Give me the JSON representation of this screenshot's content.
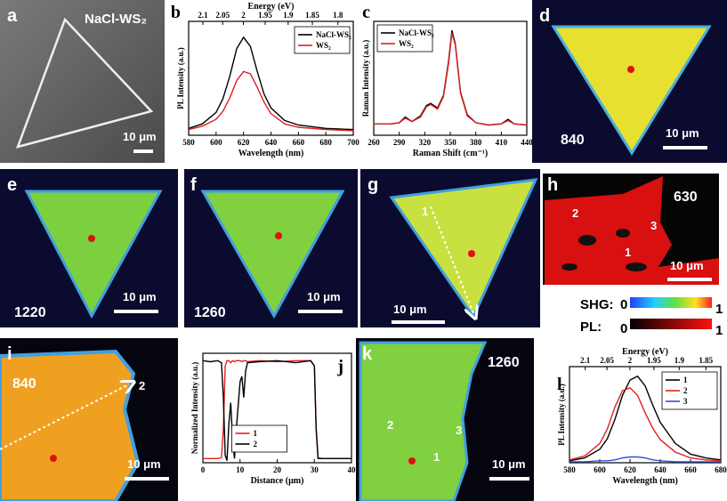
{
  "chart_data": [
    {
      "type": "line",
      "panel": "b",
      "xlabel": "Wavelength (nm)",
      "ylabel": "PL Intensity (a.u.)",
      "x2label": "Energy (eV)",
      "x": [
        580,
        590,
        600,
        605,
        610,
        615,
        620,
        625,
        630,
        635,
        640,
        650,
        660,
        680,
        700
      ],
      "xlim": [
        580,
        700
      ],
      "xticks": [
        580,
        600,
        620,
        640,
        660,
        680,
        700
      ],
      "x2ticks": [
        2.1,
        2.05,
        2,
        1.95,
        1.9,
        1.85,
        1.8
      ],
      "ylim": [
        0,
        1
      ],
      "legend": "upper right",
      "series": [
        {
          "name": "NaCl-WS₂",
          "color": "#000000",
          "values": [
            0.06,
            0.1,
            0.2,
            0.32,
            0.52,
            0.76,
            0.86,
            0.78,
            0.56,
            0.36,
            0.24,
            0.13,
            0.09,
            0.06,
            0.05
          ]
        },
        {
          "name": "WS₂",
          "color": "#e02020",
          "values": [
            0.05,
            0.08,
            0.14,
            0.21,
            0.33,
            0.48,
            0.56,
            0.54,
            0.42,
            0.29,
            0.19,
            0.1,
            0.07,
            0.05,
            0.04
          ]
        }
      ]
    },
    {
      "type": "line",
      "panel": "c",
      "xlabel": "Raman Shift (cm⁻¹)",
      "ylabel": "Raman Intensity (a.u.)",
      "x": [
        260,
        280,
        290,
        297,
        305,
        315,
        322,
        327,
        335,
        342,
        348,
        352,
        356,
        362,
        370,
        380,
        395,
        410,
        418,
        425,
        440
      ],
      "xlim": [
        260,
        440
      ],
      "xticks": [
        260,
        290,
        320,
        350,
        380,
        410,
        440
      ],
      "ylim": [
        0,
        1
      ],
      "legend": "upper left",
      "series": [
        {
          "name": "NaCl-WS₂",
          "color": "#000000",
          "values": [
            0.1,
            0.1,
            0.11,
            0.16,
            0.12,
            0.17,
            0.26,
            0.28,
            0.24,
            0.35,
            0.65,
            0.92,
            0.8,
            0.38,
            0.18,
            0.11,
            0.09,
            0.1,
            0.14,
            0.1,
            0.09
          ]
        },
        {
          "name": "WS₂",
          "color": "#e02020",
          "values": [
            0.1,
            0.1,
            0.11,
            0.15,
            0.12,
            0.16,
            0.25,
            0.27,
            0.23,
            0.34,
            0.63,
            0.9,
            0.79,
            0.37,
            0.17,
            0.11,
            0.09,
            0.1,
            0.13,
            0.1,
            0.09
          ]
        }
      ]
    },
    {
      "type": "line",
      "panel": "j",
      "xlabel": "Distance (μm)",
      "ylabel": "Normalized Intensity (a.u.)",
      "x": [
        0,
        2,
        4,
        5,
        5.5,
        6,
        6.5,
        7,
        7.5,
        8,
        8.5,
        9,
        10,
        10.5,
        11,
        11.5,
        12,
        15,
        20,
        25,
        29,
        30,
        30.5,
        31,
        32,
        35,
        40
      ],
      "xlim": [
        0,
        40
      ],
      "xticks": [
        0,
        10,
        20,
        30,
        40
      ],
      "ylim": [
        -0.02,
        1.02
      ],
      "legend": "lower center",
      "series": [
        {
          "name": "1",
          "color": "#e02020",
          "values": [
            0.02,
            0.02,
            0.02,
            0.03,
            0.3,
            0.9,
            0.95,
            0.95,
            0.93,
            0.95,
            0.94,
            0.95,
            0.95,
            0.94,
            0.95,
            0.95,
            0.94,
            0.95,
            0.94,
            0.95,
            0.95,
            0.9,
            0.3,
            0.03,
            0.02,
            0.02,
            0.02
          ]
        },
        {
          "name": "2",
          "color": "#000000",
          "values": [
            0.95,
            0.94,
            0.95,
            0.93,
            0.6,
            0.05,
            0.0,
            0.35,
            0.55,
            0.2,
            0.02,
            0.3,
            0.75,
            0.8,
            0.6,
            0.85,
            0.93,
            0.94,
            0.95,
            0.93,
            0.95,
            0.9,
            0.3,
            0.02,
            0.02,
            0.02,
            0.02
          ]
        }
      ]
    },
    {
      "type": "line",
      "panel": "l",
      "xlabel": "Wavelength (nm)",
      "ylabel": "PL Intensity (a.u.)",
      "x2label": "Energy (eV)",
      "x": [
        580,
        590,
        600,
        605,
        610,
        615,
        620,
        625,
        630,
        635,
        640,
        650,
        660,
        670,
        680
      ],
      "xlim": [
        580,
        680
      ],
      "xticks": [
        580,
        600,
        620,
        640,
        660,
        680
      ],
      "x2ticks": [
        2.1,
        2.05,
        2,
        1.95,
        1.9,
        1.85
      ],
      "ylim": [
        0,
        1
      ],
      "legend": "upper right",
      "series": [
        {
          "name": "1",
          "color": "#000000",
          "values": [
            0.02,
            0.05,
            0.14,
            0.25,
            0.45,
            0.7,
            0.86,
            0.9,
            0.8,
            0.6,
            0.42,
            0.2,
            0.09,
            0.05,
            0.03
          ]
        },
        {
          "name": "2",
          "color": "#e02020",
          "values": [
            0.03,
            0.07,
            0.2,
            0.35,
            0.58,
            0.75,
            0.78,
            0.7,
            0.52,
            0.36,
            0.24,
            0.11,
            0.05,
            0.03,
            0.02
          ]
        },
        {
          "name": "3",
          "color": "#3050d0",
          "values": [
            0.01,
            0.01,
            0.02,
            0.02,
            0.03,
            0.05,
            0.06,
            0.06,
            0.05,
            0.03,
            0.02,
            0.01,
            0.01,
            0.01,
            0.01
          ]
        }
      ]
    }
  ],
  "images": [
    {
      "panel": "a",
      "texts": [
        "NaCl-WS₂",
        "10 μm"
      ]
    },
    {
      "panel": "d",
      "texts": [
        "840",
        "10 μm"
      ]
    },
    {
      "panel": "e",
      "texts": [
        "1220",
        "10 μm"
      ]
    },
    {
      "panel": "f",
      "texts": [
        "1260",
        "10 μm"
      ]
    },
    {
      "panel": "g",
      "texts": [
        "1",
        "10 μm"
      ]
    },
    {
      "panel": "h",
      "texts": [
        "630",
        "2",
        "3",
        "1",
        "10 μm"
      ]
    },
    {
      "panel": "i",
      "texts": [
        "840",
        "2",
        "10 μm"
      ]
    },
    {
      "panel": "k",
      "texts": [
        "1260",
        "2",
        "3",
        "1",
        "10 μm"
      ]
    }
  ],
  "colorbars": [
    {
      "name": "SHG:",
      "min": "0",
      "max": "1"
    },
    {
      "name": "PL:",
      "min": "0",
      "max": "1"
    }
  ]
}
